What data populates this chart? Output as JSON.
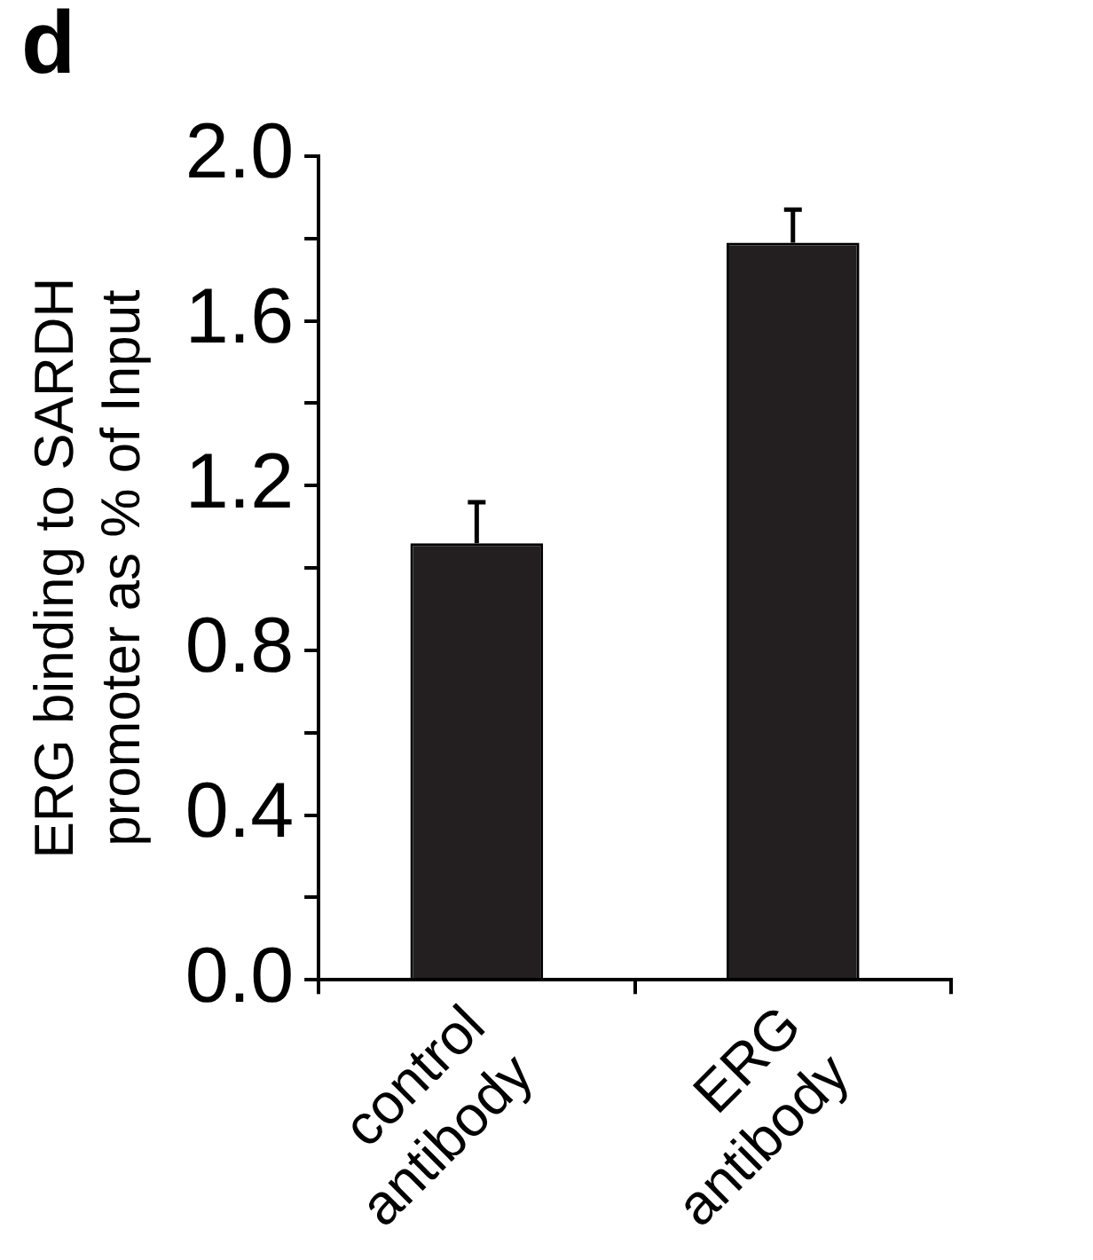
{
  "chart_data": {
    "type": "bar",
    "ylabel": "ERG binding to SARDH promoter as % of Input",
    "annotations": [
      "d"
    ],
    "categories": [
      "control antibody",
      "ERG antibody"
    ],
    "values": [
      1.06,
      1.79
    ],
    "color": "#231f20",
    "errors": [
      [
        1.06,
        1.16
      ],
      [
        1.79,
        1.87
      ]
    ],
    "ylim": [
      0,
      2
    ],
    "yticks": [
      {
        "value": 0,
        "label": "0.0"
      },
      {
        "value": 0.2,
        "label": null
      },
      {
        "value": 0.4,
        "label": "0.4"
      },
      {
        "value": 0.6,
        "label": null
      },
      {
        "value": 0.8,
        "label": "0.8"
      },
      {
        "value": 1,
        "label": null
      },
      {
        "value": 1.2,
        "label": "1.2"
      },
      {
        "value": 1.4,
        "label": null
      },
      {
        "value": 1.6,
        "label": "1.6"
      },
      {
        "value": 1.8,
        "label": null
      },
      {
        "value": 2,
        "label": "2.0"
      }
    ],
    "grid": false,
    "legend": false
  }
}
